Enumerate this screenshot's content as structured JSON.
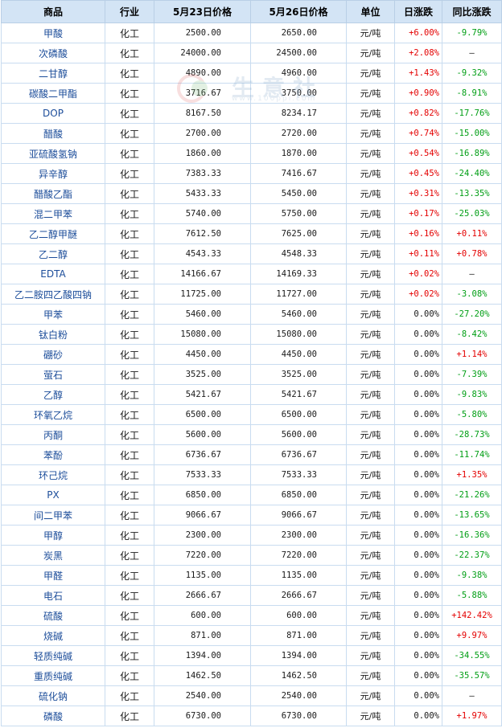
{
  "headers": [
    "商品",
    "行业",
    "5月23日价格",
    "5月26日价格",
    "单位",
    "日涨跌",
    "同比涨跌"
  ],
  "watermark": {
    "text": "生意社",
    "sub": "www.100ppi.com"
  },
  "colors": {
    "header_bg": "#d3e4f5",
    "up": "#e40000",
    "down": "#009e14",
    "name": "#1c4d9a"
  },
  "rows": [
    [
      "甲酸",
      "化工",
      "2500.00",
      "2650.00",
      "元/吨",
      "+6.00%",
      "-9.79%"
    ],
    [
      "次磷酸",
      "化工",
      "24000.00",
      "24500.00",
      "元/吨",
      "+2.08%",
      "—"
    ],
    [
      "二甘醇",
      "化工",
      "4890.00",
      "4960.00",
      "元/吨",
      "+1.43%",
      "-9.32%"
    ],
    [
      "碳酸二甲酯",
      "化工",
      "3716.67",
      "3750.00",
      "元/吨",
      "+0.90%",
      "-8.91%"
    ],
    [
      "DOP",
      "化工",
      "8167.50",
      "8234.17",
      "元/吨",
      "+0.82%",
      "-17.76%"
    ],
    [
      "醋酸",
      "化工",
      "2700.00",
      "2720.00",
      "元/吨",
      "+0.74%",
      "-15.00%"
    ],
    [
      "亚硫酸氢钠",
      "化工",
      "1860.00",
      "1870.00",
      "元/吨",
      "+0.54%",
      "-16.89%"
    ],
    [
      "异辛醇",
      "化工",
      "7383.33",
      "7416.67",
      "元/吨",
      "+0.45%",
      "-24.40%"
    ],
    [
      "醋酸乙酯",
      "化工",
      "5433.33",
      "5450.00",
      "元/吨",
      "+0.31%",
      "-13.35%"
    ],
    [
      "混二甲苯",
      "化工",
      "5740.00",
      "5750.00",
      "元/吨",
      "+0.17%",
      "-25.03%"
    ],
    [
      "乙二醇甲醚",
      "化工",
      "7612.50",
      "7625.00",
      "元/吨",
      "+0.16%",
      "+0.11%"
    ],
    [
      "乙二醇",
      "化工",
      "4543.33",
      "4548.33",
      "元/吨",
      "+0.11%",
      "+0.78%"
    ],
    [
      "EDTA",
      "化工",
      "14166.67",
      "14169.33",
      "元/吨",
      "+0.02%",
      "—"
    ],
    [
      "乙二胺四乙酸四钠",
      "化工",
      "11725.00",
      "11727.00",
      "元/吨",
      "+0.02%",
      "-3.08%"
    ],
    [
      "甲苯",
      "化工",
      "5460.00",
      "5460.00",
      "元/吨",
      "0.00%",
      "-27.20%"
    ],
    [
      "钛白粉",
      "化工",
      "15080.00",
      "15080.00",
      "元/吨",
      "0.00%",
      "-8.42%"
    ],
    [
      "硼砂",
      "化工",
      "4450.00",
      "4450.00",
      "元/吨",
      "0.00%",
      "+1.14%"
    ],
    [
      "萤石",
      "化工",
      "3525.00",
      "3525.00",
      "元/吨",
      "0.00%",
      "-7.39%"
    ],
    [
      "乙醇",
      "化工",
      "5421.67",
      "5421.67",
      "元/吨",
      "0.00%",
      "-9.83%"
    ],
    [
      "环氧乙烷",
      "化工",
      "6500.00",
      "6500.00",
      "元/吨",
      "0.00%",
      "-5.80%"
    ],
    [
      "丙酮",
      "化工",
      "5600.00",
      "5600.00",
      "元/吨",
      "0.00%",
      "-28.73%"
    ],
    [
      "苯酚",
      "化工",
      "6736.67",
      "6736.67",
      "元/吨",
      "0.00%",
      "-11.74%"
    ],
    [
      "环己烷",
      "化工",
      "7533.33",
      "7533.33",
      "元/吨",
      "0.00%",
      "+1.35%"
    ],
    [
      "PX",
      "化工",
      "6850.00",
      "6850.00",
      "元/吨",
      "0.00%",
      "-21.26%"
    ],
    [
      "间二甲苯",
      "化工",
      "9066.67",
      "9066.67",
      "元/吨",
      "0.00%",
      "-13.65%"
    ],
    [
      "甲醇",
      "化工",
      "2300.00",
      "2300.00",
      "元/吨",
      "0.00%",
      "-16.36%"
    ],
    [
      "炭黑",
      "化工",
      "7220.00",
      "7220.00",
      "元/吨",
      "0.00%",
      "-22.37%"
    ],
    [
      "甲醛",
      "化工",
      "1135.00",
      "1135.00",
      "元/吨",
      "0.00%",
      "-9.38%"
    ],
    [
      "电石",
      "化工",
      "2666.67",
      "2666.67",
      "元/吨",
      "0.00%",
      "-5.88%"
    ],
    [
      "硫酸",
      "化工",
      "600.00",
      "600.00",
      "元/吨",
      "0.00%",
      "+142.42%"
    ],
    [
      "烧碱",
      "化工",
      "871.00",
      "871.00",
      "元/吨",
      "0.00%",
      "+9.97%"
    ],
    [
      "轻质纯碱",
      "化工",
      "1394.00",
      "1394.00",
      "元/吨",
      "0.00%",
      "-34.55%"
    ],
    [
      "重质纯碱",
      "化工",
      "1462.50",
      "1462.50",
      "元/吨",
      "0.00%",
      "-35.57%"
    ],
    [
      "硫化钠",
      "化工",
      "2540.00",
      "2540.00",
      "元/吨",
      "0.00%",
      "—"
    ],
    [
      "磷酸",
      "化工",
      "6730.00",
      "6730.00",
      "元/吨",
      "0.00%",
      "+1.97%"
    ]
  ]
}
